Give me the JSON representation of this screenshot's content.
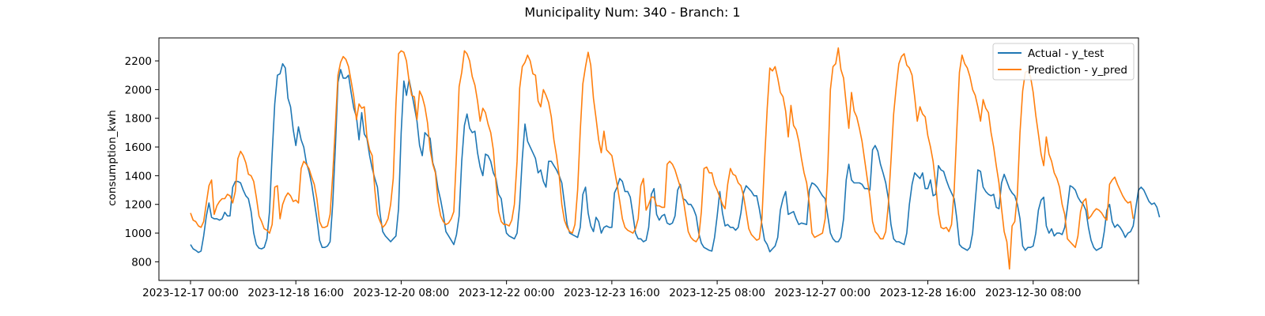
{
  "chart_data": {
    "type": "line",
    "title": "Municipality Num: 340 - Branch: 1",
    "xlabel": "",
    "ylabel": "consumption_kwh",
    "ylim": [
      670,
      2360
    ],
    "yticks": [
      800,
      1000,
      1200,
      1400,
      1600,
      1800,
      2000,
      2200
    ],
    "x_start": "2023-12-17 00:00",
    "x_step_hours": 1,
    "xlim_hours": [
      -12,
      360
    ],
    "xticks": [
      {
        "hours": 0,
        "label": "2023-12-17 00:00"
      },
      {
        "hours": 40,
        "label": "2023-12-18 16:00"
      },
      {
        "hours": 80,
        "label": "2023-12-20 08:00"
      },
      {
        "hours": 120,
        "label": "2023-12-22 00:00"
      },
      {
        "hours": 160,
        "label": "2023-12-23 16:00"
      },
      {
        "hours": 200,
        "label": "2023-12-25 08:00"
      },
      {
        "hours": 240,
        "label": "2023-12-27 00:00"
      },
      {
        "hours": 280,
        "label": "2023-12-28 16:00"
      },
      {
        "hours": 320,
        "label": "2023-12-30 08:00"
      },
      {
        "hours": 360,
        "label": ""
      }
    ],
    "legend_position": "upper right",
    "grid": false,
    "series": [
      {
        "name": "Actual - y_test",
        "color": "#1f77b4",
        "values": [
          920,
          890,
          880,
          865,
          875,
          980,
          1120,
          1210,
          1110,
          1100,
          1100,
          1090,
          1100,
          1145,
          1120,
          1120,
          1320,
          1360,
          1360,
          1350,
          1300,
          1260,
          1240,
          1150,
          1000,
          920,
          895,
          890,
          900,
          960,
          1150,
          1550,
          1900,
          2100,
          2110,
          2180,
          2150,
          1940,
          1880,
          1720,
          1610,
          1740,
          1650,
          1600,
          1490,
          1430,
          1340,
          1220,
          1100,
          950,
          900,
          900,
          910,
          940,
          1200,
          1600,
          2050,
          2140,
          2080,
          2080,
          2100,
          1980,
          1870,
          1810,
          1650,
          1840,
          1690,
          1660,
          1540,
          1450,
          1380,
          1320,
          1130,
          1010,
          980,
          960,
          940,
          960,
          980,
          1170,
          1700,
          2060,
          1960,
          2070,
          1980,
          1880,
          1780,
          1610,
          1540,
          1700,
          1680,
          1660,
          1490,
          1430,
          1310,
          1230,
          1130,
          1010,
          980,
          950,
          920,
          990,
          1120,
          1500,
          1750,
          1830,
          1730,
          1700,
          1710,
          1560,
          1460,
          1400,
          1550,
          1540,
          1500,
          1420,
          1380,
          1270,
          1240,
          1100,
          1000,
          980,
          970,
          960,
          1000,
          1200,
          1520,
          1760,
          1640,
          1600,
          1560,
          1520,
          1420,
          1440,
          1360,
          1320,
          1500,
          1500,
          1470,
          1440,
          1400,
          1350,
          1210,
          1060,
          1000,
          990,
          980,
          970,
          1040,
          1270,
          1320,
          1140,
          1050,
          1010,
          1110,
          1080,
          1000,
          1040,
          1050,
          1040,
          1040,
          1280,
          1320,
          1380,
          1360,
          1290,
          1290,
          1250,
          1130,
          1000,
          960,
          960,
          940,
          950,
          1040,
          1270,
          1310,
          1130,
          1090,
          1120,
          1130,
          1070,
          1060,
          1070,
          1120,
          1300,
          1340,
          1240,
          1230,
          1200,
          1200,
          1170,
          1120,
          1000,
          930,
          900,
          890,
          880,
          875,
          970,
          1120,
          1290,
          1140,
          1050,
          1060,
          1040,
          1040,
          1020,
          1040,
          1140,
          1280,
          1330,
          1310,
          1290,
          1260,
          1260,
          1170,
          1060,
          950,
          920,
          870,
          890,
          910,
          970,
          1160,
          1240,
          1290,
          1130,
          1140,
          1150,
          1100,
          1060,
          1070,
          1065,
          1060,
          1300,
          1350,
          1340,
          1320,
          1290,
          1260,
          1240,
          1120,
          1000,
          960,
          940,
          940,
          970,
          1100,
          1370,
          1480,
          1370,
          1350,
          1350,
          1350,
          1340,
          1310,
          1310,
          1300,
          1580,
          1610,
          1570,
          1480,
          1420,
          1350,
          1240,
          1060,
          960,
          940,
          940,
          930,
          920,
          1000,
          1200,
          1340,
          1420,
          1400,
          1380,
          1420,
          1310,
          1310,
          1370,
          1260,
          1270,
          1470,
          1440,
          1430,
          1370,
          1320,
          1280,
          1240,
          1100,
          920,
          900,
          890,
          880,
          900,
          1000,
          1220,
          1440,
          1430,
          1320,
          1290,
          1270,
          1260,
          1270,
          1180,
          1170,
          1350,
          1410,
          1360,
          1310,
          1280,
          1260,
          1200,
          1100,
          910,
          880,
          900,
          900,
          910,
          1000,
          1160,
          1230,
          1250,
          1050,
          1000,
          1030,
          980,
          1000,
          1000,
          990,
          1040,
          1180,
          1330,
          1320,
          1300,
          1250,
          1220,
          1200,
          1160,
          1040,
          950,
          900,
          880,
          890,
          900,
          1010,
          1160,
          1200,
          1080,
          1040,
          1060,
          1040,
          1010,
          970,
          1000,
          1010,
          1050,
          1180,
          1300,
          1320,
          1300,
          1260,
          1220,
          1200,
          1210,
          1180,
          1110
        ]
      },
      {
        "name": "Prediction - y_pred",
        "color": "#ff7f0e",
        "values": [
          1140,
          1090,
          1080,
          1050,
          1040,
          1080,
          1210,
          1330,
          1370,
          1130,
          1190,
          1220,
          1240,
          1240,
          1270,
          1260,
          1210,
          1290,
          1520,
          1570,
          1540,
          1490,
          1410,
          1400,
          1360,
          1250,
          1120,
          1080,
          1030,
          1020,
          1000,
          1060,
          1320,
          1330,
          1100,
          1200,
          1250,
          1280,
          1260,
          1220,
          1230,
          1210,
          1450,
          1500,
          1480,
          1450,
          1390,
          1340,
          1240,
          1080,
          1040,
          1040,
          1050,
          1130,
          1400,
          1750,
          2100,
          2190,
          2230,
          2210,
          2160,
          2060,
          1950,
          1790,
          1900,
          1870,
          1880,
          1670,
          1580,
          1540,
          1300,
          1130,
          1080,
          1040,
          1060,
          1100,
          1200,
          1380,
          1900,
          2250,
          2270,
          2260,
          2200,
          2060,
          1960,
          1950,
          1790,
          1990,
          1950,
          1880,
          1770,
          1580,
          1480,
          1420,
          1220,
          1120,
          1080,
          1060,
          1070,
          1100,
          1150,
          1550,
          2020,
          2120,
          2270,
          2250,
          2200,
          2090,
          2030,
          1920,
          1780,
          1870,
          1840,
          1760,
          1700,
          1580,
          1350,
          1150,
          1080,
          1060,
          1060,
          1050,
          1090,
          1200,
          1500,
          2010,
          2160,
          2190,
          2240,
          2200,
          2110,
          2100,
          1920,
          1880,
          2000,
          1960,
          1910,
          1810,
          1650,
          1540,
          1400,
          1200,
          1090,
          1040,
          1010,
          1000,
          1060,
          1300,
          1710,
          2040,
          2160,
          2260,
          2170,
          1940,
          1800,
          1650,
          1560,
          1710,
          1580,
          1560,
          1540,
          1440,
          1340,
          1220,
          1100,
          1040,
          1020,
          1010,
          1000,
          1030,
          1100,
          1330,
          1380,
          1160,
          1200,
          1250,
          1250,
          1190,
          1190,
          1180,
          1180,
          1480,
          1500,
          1480,
          1440,
          1380,
          1320,
          1250,
          1130,
          1010,
          970,
          950,
          940,
          970,
          1150,
          1450,
          1460,
          1420,
          1420,
          1340,
          1300,
          1250,
          1200,
          1170,
          1340,
          1450,
          1410,
          1400,
          1350,
          1330,
          1260,
          1150,
          1030,
          990,
          970,
          950,
          960,
          1100,
          1500,
          1870,
          2150,
          2130,
          2160,
          2080,
          1980,
          1950,
          1850,
          1670,
          1890,
          1750,
          1720,
          1640,
          1520,
          1420,
          1350,
          1200,
          1000,
          970,
          980,
          990,
          1000,
          1100,
          1450,
          2000,
          2160,
          2180,
          2290,
          2140,
          2080,
          1900,
          1730,
          1980,
          1850,
          1810,
          1730,
          1640,
          1510,
          1380,
          1250,
          1080,
          1010,
          990,
          960,
          960,
          1010,
          1200,
          1500,
          1830,
          2020,
          2180,
          2230,
          2250,
          2170,
          2150,
          2100,
          1950,
          1780,
          1880,
          1830,
          1810,
          1680,
          1600,
          1500,
          1340,
          1140,
          1040,
          1030,
          1040,
          1010,
          1060,
          1300,
          1720,
          2120,
          2240,
          2180,
          2150,
          2090,
          2000,
          1960,
          1880,
          1780,
          1930,
          1870,
          1840,
          1700,
          1600,
          1470,
          1350,
          1170,
          1010,
          940,
          750,
          1050,
          1080,
          1270,
          1700,
          1990,
          2120,
          2130,
          2090,
          1980,
          1820,
          1690,
          1550,
          1470,
          1670,
          1550,
          1500,
          1420,
          1380,
          1320,
          1200,
          1130,
          960,
          940,
          920,
          900,
          980,
          1150,
          1220,
          1240,
          1100,
          1120,
          1150,
          1170,
          1160,
          1140,
          1110,
          1090,
          1340,
          1370,
          1390,
          1340,
          1300,
          1260,
          1230,
          1210,
          1220,
          1100
        ]
      }
    ]
  }
}
